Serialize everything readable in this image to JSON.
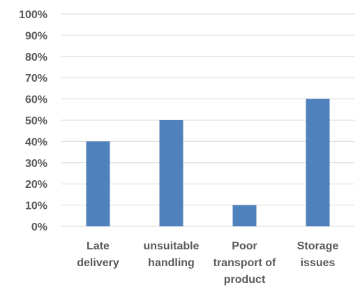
{
  "chart_data": {
    "type": "bar",
    "title": "",
    "xlabel": "",
    "ylabel": "",
    "categories": [
      [
        "Late",
        "delivery"
      ],
      [
        "unsuitable",
        "handling"
      ],
      [
        "Poor",
        "transport of",
        "product"
      ],
      [
        "Storage",
        "issues"
      ]
    ],
    "values": [
      40,
      50,
      10,
      60
    ],
    "ylim": [
      0,
      100
    ],
    "y_ticks": [
      "0%",
      "10%",
      "20%",
      "30%",
      "40%",
      "50%",
      "60%",
      "70%",
      "80%",
      "90%",
      "100%"
    ],
    "grid": true,
    "legend": "none",
    "bar_color": "#4f81bd"
  }
}
